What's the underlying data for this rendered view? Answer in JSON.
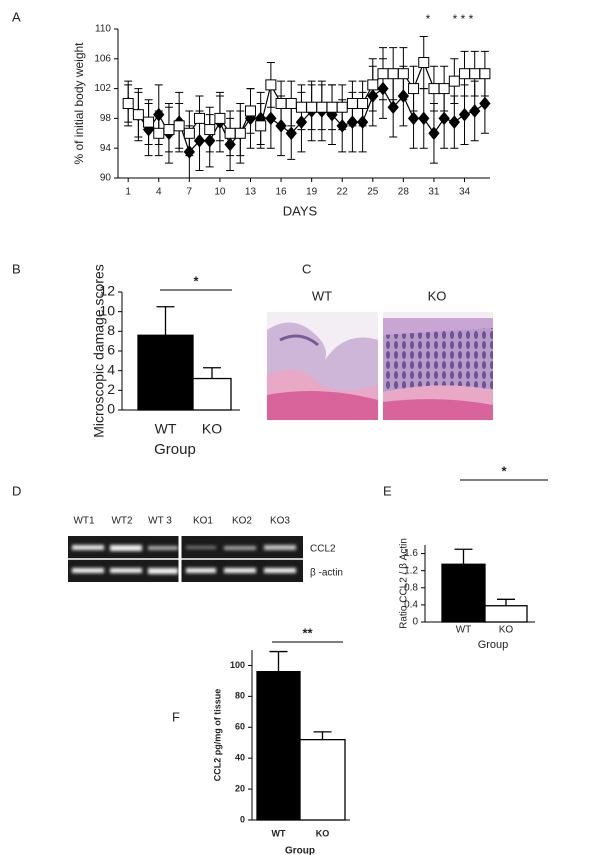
{
  "panel_labels": [
    "A",
    "B",
    "C",
    "D",
    "E",
    "F"
  ],
  "chart_data": [
    {
      "type": "line",
      "ylabel": "% of initial body weight",
      "xlabel": "DAYS",
      "x": [
        1,
        2,
        3,
        4,
        5,
        6,
        7,
        8,
        9,
        10,
        11,
        12,
        13,
        14,
        15,
        16,
        17,
        18,
        19,
        20,
        21,
        22,
        23,
        24,
        25,
        26,
        27,
        28,
        29,
        30,
        31,
        32,
        33,
        34,
        35,
        36
      ],
      "xlim": [
        0,
        36.5
      ],
      "xticks": [
        1,
        4,
        7,
        10,
        13,
        16,
        19,
        22,
        25,
        28,
        31,
        34
      ],
      "ylim": [
        90,
        110
      ],
      "yticks": [
        90,
        94,
        98,
        102,
        106,
        110
      ],
      "annotations": [
        "*",
        "* * *"
      ],
      "series": [
        {
          "marker": "diamond",
          "color": "#000000",
          "values": [
            100,
            98.5,
            96.5,
            98.5,
            96,
            97.5,
            93.5,
            95,
            95,
            97.5,
            94.5,
            96,
            98,
            98,
            98,
            97,
            96,
            97.5,
            99,
            99,
            98.5,
            97,
            97.5,
            97.5,
            101,
            102,
            99.5,
            101,
            98,
            98,
            96,
            98,
            97.5,
            98.5,
            99,
            100
          ],
          "errors": [
            3,
            3.5,
            3.5,
            4,
            4,
            4,
            3.5,
            4,
            3.5,
            4,
            3.5,
            4,
            4,
            3.5,
            4,
            4,
            3.5,
            4,
            4,
            4,
            4,
            3.5,
            4,
            4,
            4,
            4,
            4,
            4,
            4,
            4,
            4,
            4,
            3.5,
            4,
            4,
            4
          ]
        },
        {
          "marker": "square",
          "color": "#ffffff",
          "values": [
            100,
            98.5,
            97.5,
            96,
            96.5,
            97,
            96,
            98,
            96.5,
            98,
            96,
            96,
            99,
            97,
            102.5,
            100,
            100,
            99.5,
            99.5,
            99.5,
            99.5,
            99.5,
            100,
            100,
            102.5,
            104,
            104,
            104,
            102,
            105.5,
            102,
            102,
            103,
            104,
            104,
            104
          ],
          "errors": [
            2.5,
            3,
            3,
            3,
            3,
            3,
            3,
            3,
            3,
            3,
            3,
            3,
            3,
            3,
            3,
            3,
            3,
            3,
            3,
            3,
            3,
            3,
            3,
            3,
            3.5,
            3.5,
            3.5,
            3.5,
            3,
            3.5,
            3,
            3,
            3,
            3,
            3,
            3
          ]
        }
      ]
    },
    {
      "type": "bar",
      "ylabel": "Microscopic damage scores",
      "xlabel": "Group",
      "categories": [
        "WT",
        "KO"
      ],
      "values": [
        7.6,
        3.2
      ],
      "errors": [
        2.9,
        1.1
      ],
      "colors": [
        "#000000",
        "#ffffff"
      ],
      "ylim": [
        0,
        12
      ],
      "yticks": [
        0,
        2,
        4,
        6,
        8,
        10,
        12
      ],
      "annotations": [
        "*"
      ]
    },
    {
      "type": "bar",
      "ylabel": "Ratio CCL2 / β Actin",
      "xlabel": "Group",
      "categories": [
        "WT",
        "KO"
      ],
      "values": [
        1.35,
        0.38
      ],
      "errors": [
        0.35,
        0.15
      ],
      "colors": [
        "#000000",
        "#ffffff"
      ],
      "ylim": [
        0,
        1.8
      ],
      "yticks": [
        0,
        0.4,
        0.8,
        1.2,
        1.6
      ],
      "annotations": [
        "*"
      ]
    },
    {
      "type": "bar",
      "ylabel": "CCL2 pg/mg of tissue",
      "xlabel": "Group",
      "categories": [
        "WT",
        "KO"
      ],
      "values": [
        96,
        52
      ],
      "errors": [
        13,
        5
      ],
      "colors": [
        "#000000",
        "#ffffff"
      ],
      "ylim": [
        0,
        110
      ],
      "yticks": [
        0,
        20,
        40,
        60,
        80,
        100
      ],
      "annotations": [
        "**"
      ]
    }
  ],
  "histology": {
    "labels": [
      "WT",
      "KO"
    ]
  },
  "gel": {
    "lanes": [
      "WT1",
      "WT2",
      "WT 3",
      "KO1",
      "KO2",
      "KO3"
    ],
    "rows": [
      "CCL2",
      "β -actin"
    ]
  }
}
